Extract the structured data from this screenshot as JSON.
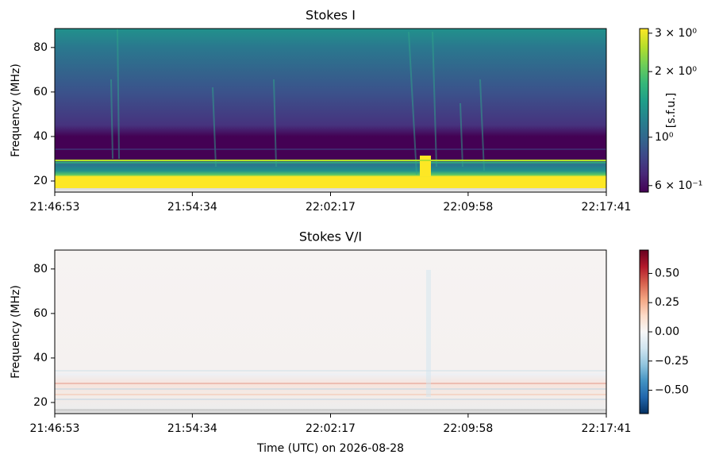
{
  "chart_data": [
    {
      "type": "heatmap",
      "title": "Stokes I",
      "y_label": "Frequency (MHz)",
      "xlim": [
        "21:46:53",
        "22:17:41"
      ],
      "xticks": [
        "21:46:53",
        "21:54:34",
        "22:02:17",
        "22:09:58",
        "22:17:41"
      ],
      "ylim": [
        15,
        88.5
      ],
      "yticks": [
        20,
        40,
        60,
        80
      ],
      "colormap": "viridis",
      "color_scale": "log",
      "colorbar_label": "[s.f.u.]",
      "clim": [
        0.56,
        3.15
      ],
      "cticks": [
        {
          "value": 3,
          "label": "3 × 10⁰"
        },
        {
          "value": 2,
          "label": "2 × 10⁰"
        },
        {
          "value": 1,
          "label": "10⁰"
        },
        {
          "value": 0.6,
          "label": "6 × 10⁻¹"
        }
      ]
    },
    {
      "type": "heatmap",
      "title": "Stokes V/I",
      "y_label": "Frequency (MHz)",
      "x_label": "Time (UTC) on 2026-08-28",
      "xlim": [
        "21:46:53",
        "22:17:41"
      ],
      "xticks": [
        "21:46:53",
        "21:54:34",
        "22:02:17",
        "22:09:58",
        "22:17:41"
      ],
      "ylim": [
        15,
        88.5
      ],
      "yticks": [
        20,
        40,
        60,
        80
      ],
      "colormap": "RdBu_r",
      "color_scale": "linear",
      "clim": [
        -0.7,
        0.7
      ],
      "cticks": [
        {
          "value": 0.5,
          "label": "0.50"
        },
        {
          "value": 0.25,
          "label": "0.25"
        },
        {
          "value": 0,
          "label": "0.00"
        },
        {
          "value": -0.25,
          "label": "−0.25"
        },
        {
          "value": -0.5,
          "label": "−0.50"
        }
      ]
    }
  ]
}
